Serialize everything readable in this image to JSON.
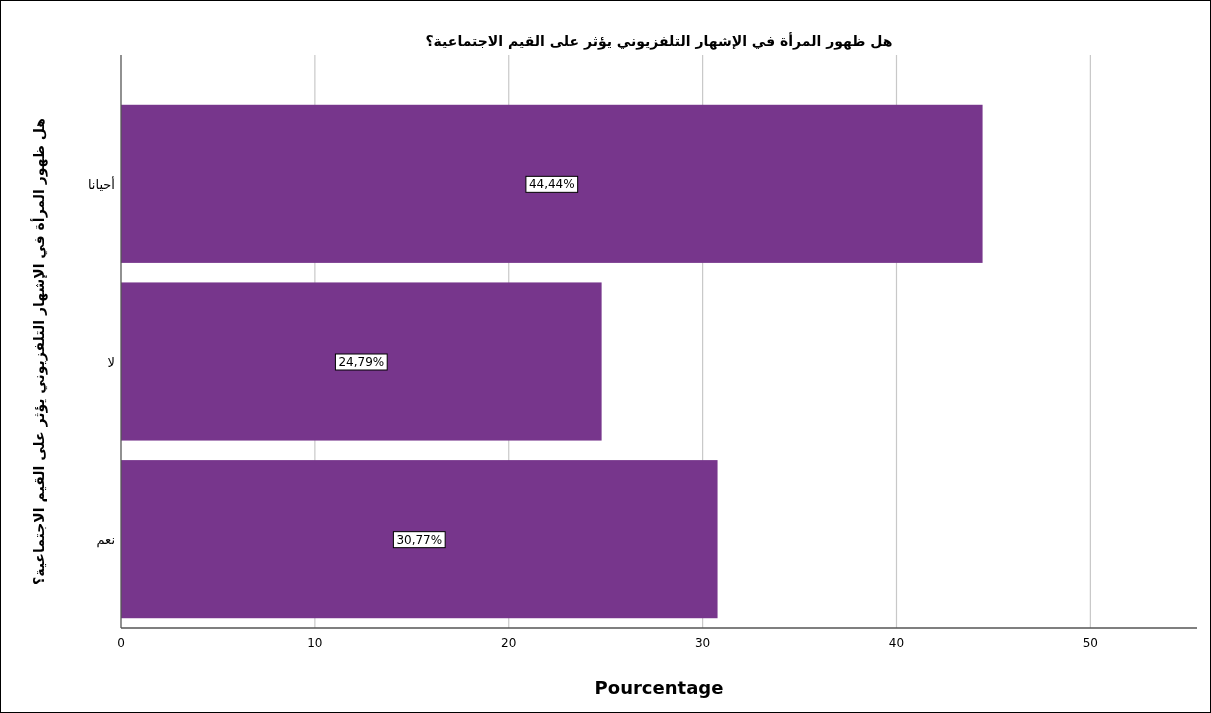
{
  "chart_data": {
    "type": "bar",
    "orientation": "horizontal",
    "title": "هل ظهور المرأة في الإشهار التلفزيوني يؤثر على القيم الاجتماعية؟",
    "ylabel": "هل ظهور المرأة في الإشهار التلفزيوني يؤثر على القيم الاجتماعية؟",
    "xlabel": "Pourcentage",
    "categories": [
      "أحيانا",
      "لا",
      "نعم"
    ],
    "values": [
      44.44,
      24.79,
      30.77
    ],
    "value_labels": [
      "44,44%",
      "24,79%",
      "30,77%"
    ],
    "color": "#77368c",
    "xlim": [
      0,
      55.5
    ],
    "xticks": [
      0,
      10,
      20,
      30,
      40,
      50
    ],
    "grid": "x"
  }
}
